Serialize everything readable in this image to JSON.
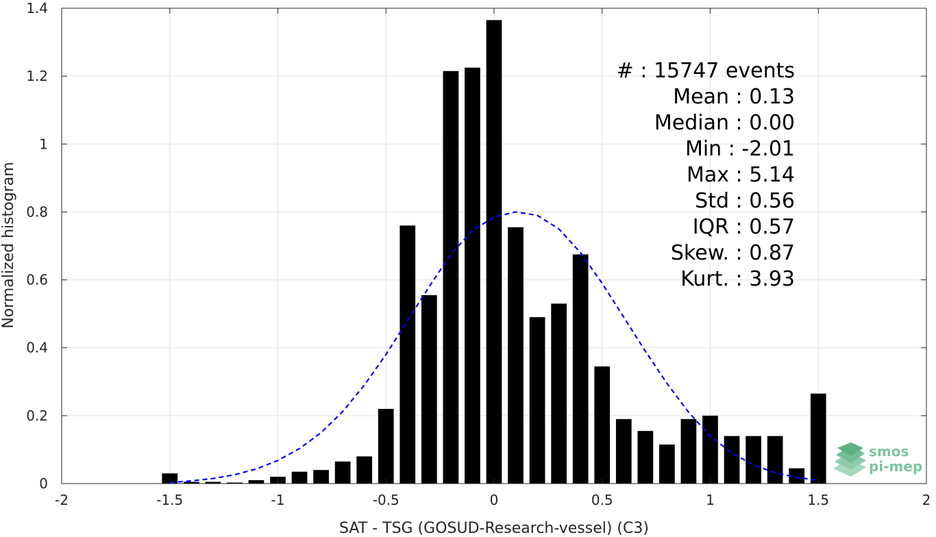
{
  "chart_data": {
    "type": "bar",
    "xlabel": "SAT - TSG (GOSUD-Research-vessel) (C3)",
    "ylabel": "Normalized histogram",
    "xlim": [
      -2,
      2
    ],
    "ylim": [
      0,
      1.4
    ],
    "grid": true,
    "xticks": [
      "-2",
      "-1.5",
      "-1",
      "-0.5",
      "0",
      "0.5",
      "1",
      "1.5",
      "2"
    ],
    "yticks": [
      "0",
      "0.2",
      "0.4",
      "0.6",
      "0.8",
      "1",
      "1.2",
      "1.4"
    ],
    "bar_color": "#000000",
    "bins": [
      {
        "x": -1.5,
        "y": 0.03
      },
      {
        "x": -1.4,
        "y": 0.005
      },
      {
        "x": -1.3,
        "y": 0.005
      },
      {
        "x": -1.2,
        "y": 0.003
      },
      {
        "x": -1.1,
        "y": 0.01
      },
      {
        "x": -1.0,
        "y": 0.02
      },
      {
        "x": -0.9,
        "y": 0.035
      },
      {
        "x": -0.8,
        "y": 0.04
      },
      {
        "x": -0.7,
        "y": 0.065
      },
      {
        "x": -0.6,
        "y": 0.08
      },
      {
        "x": -0.5,
        "y": 0.22
      },
      {
        "x": -0.4,
        "y": 0.76
      },
      {
        "x": -0.3,
        "y": 0.555
      },
      {
        "x": -0.2,
        "y": 1.215
      },
      {
        "x": -0.1,
        "y": 1.225
      },
      {
        "x": 0.0,
        "y": 1.365
      },
      {
        "x": 0.1,
        "y": 0.755
      },
      {
        "x": 0.2,
        "y": 0.49
      },
      {
        "x": 0.3,
        "y": 0.53
      },
      {
        "x": 0.4,
        "y": 0.675
      },
      {
        "x": 0.5,
        "y": 0.345
      },
      {
        "x": 0.6,
        "y": 0.19
      },
      {
        "x": 0.7,
        "y": 0.155
      },
      {
        "x": 0.8,
        "y": 0.115
      },
      {
        "x": 0.9,
        "y": 0.19
      },
      {
        "x": 1.0,
        "y": 0.2
      },
      {
        "x": 1.1,
        "y": 0.14
      },
      {
        "x": 1.2,
        "y": 0.14
      },
      {
        "x": 1.3,
        "y": 0.14
      },
      {
        "x": 1.4,
        "y": 0.045
      },
      {
        "x": 1.5,
        "y": 0.265
      }
    ],
    "gaussian_fit": {
      "color": "#0000ff",
      "style": "dashed",
      "x": [
        -1.5,
        -1.4,
        -1.3,
        -1.2,
        -1.1,
        -1.0,
        -0.9,
        -0.8,
        -0.7,
        -0.6,
        -0.5,
        -0.4,
        -0.3,
        -0.2,
        -0.1,
        0.0,
        0.1,
        0.2,
        0.3,
        0.4,
        0.5,
        0.6,
        0.7,
        0.8,
        0.9,
        1.0,
        1.1,
        1.2,
        1.3,
        1.4,
        1.5
      ],
      "y": [
        0.003,
        0.008,
        0.015,
        0.026,
        0.043,
        0.068,
        0.103,
        0.15,
        0.212,
        0.29,
        0.38,
        0.48,
        0.58,
        0.675,
        0.745,
        0.785,
        0.8,
        0.79,
        0.75,
        0.68,
        0.59,
        0.49,
        0.39,
        0.295,
        0.21,
        0.14,
        0.09,
        0.055,
        0.032,
        0.018,
        0.01
      ]
    },
    "stats": [
      "#  : 15747 events",
      "Mean : 0.13",
      "Median : 0.00",
      "Min : -2.01",
      "Max : 5.14",
      "Std : 0.56",
      "IQR : 0.57",
      "Skew. : 0.87",
      "Kurt. : 3.93"
    ]
  },
  "logo": {
    "line1": "smos",
    "line2": "pi-mep",
    "color": "#7dc4a0"
  }
}
